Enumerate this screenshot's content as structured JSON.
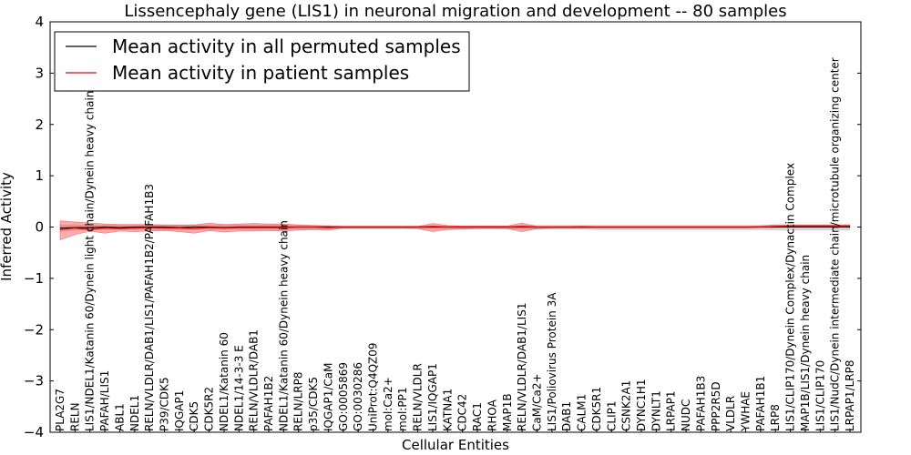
{
  "chart_data": {
    "type": "line",
    "title": "Lissencephaly gene (LIS1) in neuronal migration and development -- 80 samples",
    "xlabel": "Cellular Entities",
    "ylabel": "Inferred Activity",
    "ylim": [
      -4,
      4
    ],
    "yticks": [
      -4,
      -3,
      -2,
      -1,
      0,
      1,
      2,
      3,
      4
    ],
    "ytick_labels": [
      "−4",
      "−3",
      "−2",
      "−1",
      "0",
      "1",
      "2",
      "3",
      "4"
    ],
    "grid": false,
    "legend_position": "upper-left",
    "categories": [
      "PLA2G7",
      "RELN",
      "LIS1/NDEL1/Katanin 60/Dynein light chain/Dynein heavy chain",
      "PAFAH/LIS1",
      "ABL1",
      "NDEL1",
      "RELN/VLDLR/DAB1/LIS1/PAFAH1B2/PAFAH1B3",
      "P39/CDK5",
      "IQGAP1",
      "CDK5",
      "CDK5R2",
      "NDEL1/Katanin 60",
      "NDEL1/14-3-3 E",
      "RELN/VLDLR/DAB1",
      "PAFAH1B2",
      "NDEL1/Katanin 60/Dynein heavy chain",
      "RELN/LRP8",
      "p35/CDK5",
      "IQGAP1/CaM",
      "GO:0005869",
      "GO:0030286",
      "UniProt:Q4QZ09",
      "mol:Ca2+",
      "mol:PP1",
      "RELN/VLDLR",
      "LIS1/IQGAP1",
      "KATNA1",
      "CDC42",
      "RAC1",
      "RHOA",
      "MAP1B",
      "RELN/VLDLR/DAB1/LIS1",
      "CaM/Ca2+",
      "LIS1/Poliovirus Protein 3A",
      "DAB1",
      "CALM1",
      "CDK5R1",
      "CLIP1",
      "CSNK2A1",
      "DYNC1H1",
      "DYNLT1",
      "LRPAP1",
      "NUDC",
      "PAFAH1B3",
      "PPP2R5D",
      "VLDLR",
      "YWHAE",
      "PAFAH1B1",
      "LRP8",
      "LIS1/CLIP170/Dynein Complex/Dynactin Complex",
      "MAP1B/LIS1/Dynein heavy chain",
      "LIS1/CLIP170",
      "LIS1/NudC/Dynein intermediate chain/microtubule organizing center",
      "LRPAP1/LRP8"
    ],
    "series": [
      {
        "name": "Mean activity in all permuted samples",
        "color": "#000000",
        "values": [
          -0.02,
          -0.01,
          -0.01,
          0.0,
          -0.01,
          0.0,
          0.0,
          0.0,
          -0.01,
          0.0,
          0.0,
          -0.01,
          0.0,
          0.0,
          0.0,
          0.0,
          0.0,
          0.0,
          0.0,
          0.0,
          0.0,
          0.0,
          0.0,
          0.0,
          0.0,
          0.0,
          0.0,
          0.0,
          0.0,
          0.0,
          0.0,
          0.0,
          0.0,
          0.0,
          0.0,
          0.0,
          0.0,
          0.0,
          0.0,
          0.0,
          0.0,
          0.0,
          0.0,
          0.0,
          0.0,
          0.0,
          0.0,
          0.0,
          0.0,
          0.0,
          0.0,
          0.0,
          0.0,
          0.0
        ],
        "band_lower": [
          -0.08,
          -0.06,
          -0.05,
          -0.05,
          -0.05,
          -0.05,
          -0.05,
          -0.05,
          -0.05,
          -0.05,
          -0.05,
          -0.05,
          -0.05,
          -0.05,
          -0.05,
          -0.05,
          -0.04,
          -0.04,
          -0.04,
          -0.03,
          -0.03,
          -0.03,
          -0.03,
          -0.03,
          -0.03,
          -0.03,
          -0.03,
          -0.03,
          -0.03,
          -0.03,
          -0.03,
          -0.04,
          -0.04,
          -0.04,
          -0.04,
          -0.04,
          -0.05,
          -0.05,
          -0.05,
          -0.05,
          -0.05,
          -0.05,
          -0.05,
          -0.05,
          -0.05,
          -0.05,
          -0.05,
          -0.05,
          -0.06,
          -0.06,
          -0.06,
          -0.06,
          -0.06,
          -0.06
        ],
        "band_upper": [
          0.04,
          0.04,
          0.04,
          0.04,
          0.04,
          0.04,
          0.04,
          0.04,
          0.04,
          0.04,
          0.04,
          0.04,
          0.04,
          0.04,
          0.04,
          0.04,
          0.03,
          0.03,
          0.03,
          0.02,
          0.02,
          0.02,
          0.02,
          0.02,
          0.02,
          0.02,
          0.02,
          0.02,
          0.02,
          0.02,
          0.02,
          0.03,
          0.03,
          0.03,
          0.03,
          0.03,
          0.03,
          0.03,
          0.03,
          0.03,
          0.03,
          0.03,
          0.03,
          0.03,
          0.03,
          0.03,
          0.03,
          0.03,
          0.04,
          0.04,
          0.04,
          0.04,
          0.04,
          0.04
        ]
      },
      {
        "name": "Mean activity in patient samples",
        "color": "#ff0000",
        "values": [
          -0.05,
          -0.02,
          -0.05,
          -0.02,
          -0.03,
          -0.02,
          -0.01,
          -0.02,
          -0.02,
          -0.03,
          -0.01,
          -0.02,
          -0.01,
          -0.01,
          -0.01,
          -0.01,
          0.0,
          0.0,
          -0.01,
          0.0,
          0.0,
          0.0,
          0.0,
          0.0,
          0.0,
          0.01,
          0.0,
          0.0,
          0.0,
          0.0,
          0.0,
          0.01,
          0.0,
          0.0,
          0.0,
          0.0,
          0.0,
          0.0,
          0.0,
          0.0,
          0.0,
          0.0,
          0.0,
          0.0,
          0.0,
          0.0,
          0.0,
          0.0,
          0.01,
          0.02,
          0.02,
          0.02,
          0.02,
          0.02
        ],
        "band_lower": [
          -0.25,
          -0.15,
          -0.08,
          -0.12,
          -0.08,
          -0.09,
          -0.08,
          -0.07,
          -0.09,
          -0.12,
          -0.07,
          -0.1,
          -0.08,
          -0.08,
          -0.07,
          -0.08,
          -0.06,
          -0.05,
          -0.06,
          -0.02,
          -0.02,
          -0.02,
          -0.02,
          -0.02,
          -0.03,
          -0.09,
          -0.05,
          -0.04,
          -0.03,
          -0.03,
          -0.03,
          -0.09,
          -0.03,
          -0.02,
          -0.02,
          -0.02,
          -0.02,
          -0.02,
          -0.02,
          -0.02,
          -0.02,
          -0.02,
          -0.02,
          -0.02,
          -0.02,
          -0.02,
          -0.02,
          -0.01,
          -0.01,
          0.0,
          0.0,
          0.0,
          0.0,
          0.0
        ],
        "band_upper": [
          0.12,
          0.1,
          0.08,
          0.06,
          0.05,
          0.05,
          0.05,
          0.04,
          0.04,
          0.04,
          0.08,
          0.05,
          0.06,
          0.07,
          0.06,
          0.06,
          0.04,
          0.03,
          0.02,
          0.01,
          0.01,
          0.01,
          0.01,
          0.01,
          0.01,
          0.07,
          0.03,
          0.02,
          0.02,
          0.02,
          0.02,
          0.08,
          0.01,
          0.01,
          0.01,
          0.02,
          0.01,
          0.01,
          0.01,
          0.01,
          0.01,
          0.01,
          0.01,
          0.01,
          0.01,
          0.01,
          0.01,
          0.02,
          0.04,
          0.04,
          0.04,
          0.04,
          0.04,
          0.04
        ]
      }
    ]
  }
}
